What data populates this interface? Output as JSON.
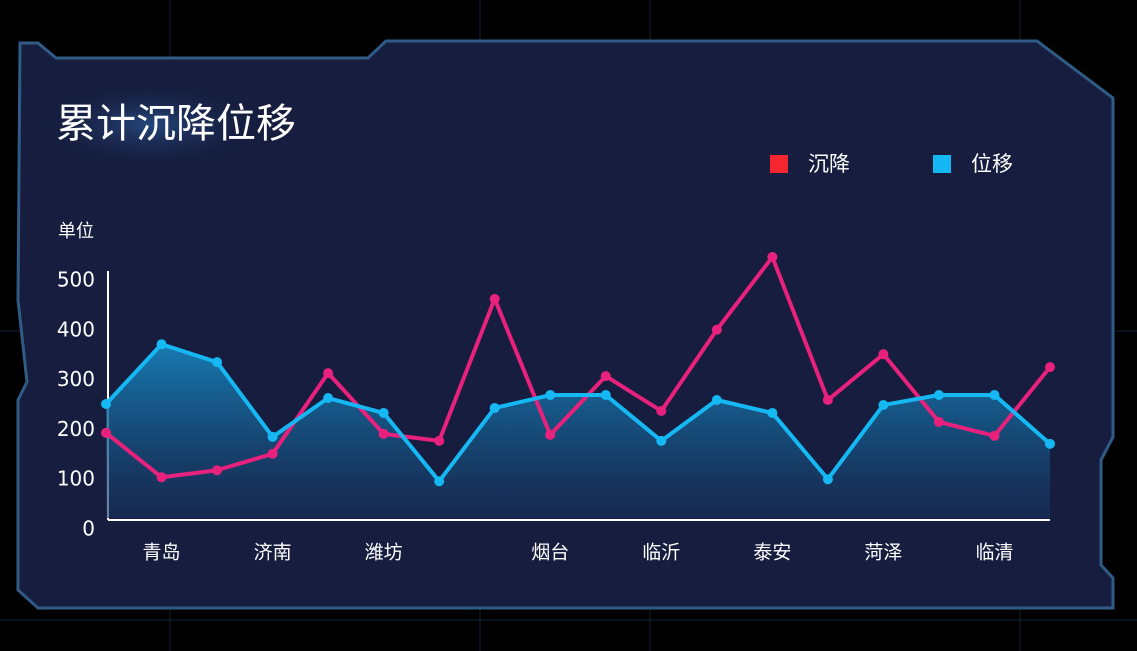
{
  "chart_data": {
    "type": "line",
    "title": "累计沉降位移",
    "y_label": "单位",
    "categories": [
      null,
      "青岛",
      null,
      "济南",
      null,
      "潍坊",
      null,
      null,
      "烟台",
      null,
      "临沂",
      null,
      "泰安",
      null,
      "菏泽",
      null,
      "临清",
      null
    ],
    "series": [
      {
        "name": "沉降",
        "color": "#e8217c",
        "legend_color": "#f5262e",
        "area": false,
        "values": [
          195,
          106,
          120,
          153,
          315,
          193,
          179,
          464,
          191,
          309,
          239,
          402,
          548,
          261,
          353,
          217,
          189,
          327
        ]
      },
      {
        "name": "位移",
        "color": "#16b8f3",
        "legend_color": "#16b8f3",
        "area": true,
        "values": [
          253,
          373,
          337,
          187,
          265,
          235,
          98,
          245,
          271,
          271,
          179,
          261,
          235,
          102,
          251,
          271,
          271,
          173
        ]
      }
    ],
    "ylim": [
      0,
      520
    ],
    "yticks": [
      0,
      100,
      200,
      300,
      400,
      500
    ],
    "legend": "top-right"
  }
}
